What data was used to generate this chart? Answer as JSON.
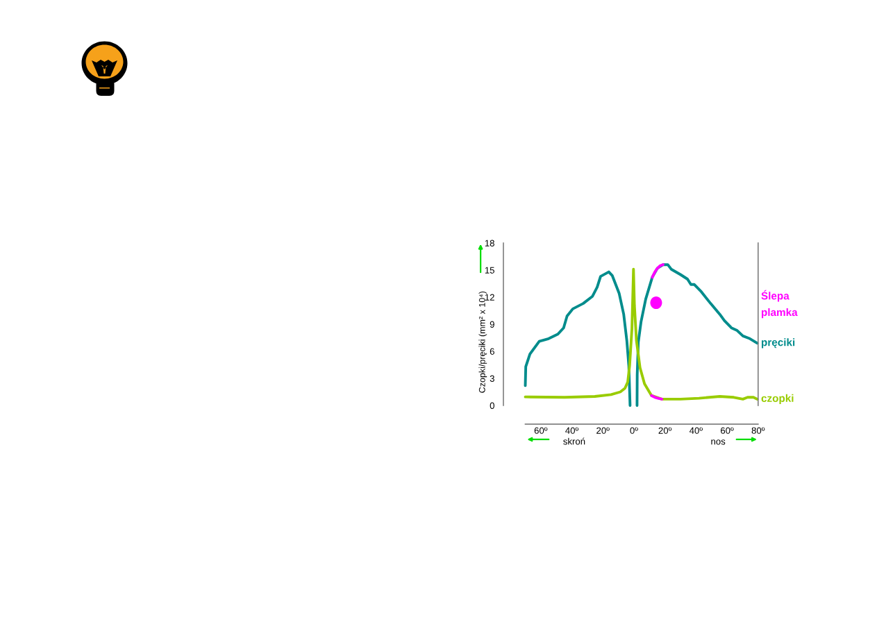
{
  "chart_data": {
    "type": "line",
    "ylabel": "Czopki/pręciki (mm² x 10⁴)",
    "xlim": [
      -70,
      80
    ],
    "xticks": [
      {
        "value": -60,
        "label": "60º"
      },
      {
        "value": -40,
        "label": "40º"
      },
      {
        "value": -20,
        "label": "20º"
      },
      {
        "value": 0,
        "label": "0º"
      },
      {
        "value": 20,
        "label": "20º"
      },
      {
        "value": 40,
        "label": "40º"
      },
      {
        "value": 60,
        "label": "60º"
      },
      {
        "value": 80,
        "label": "80º"
      }
    ],
    "ylim": [
      0,
      18
    ],
    "yticks": [
      0,
      3,
      6,
      9,
      12,
      15,
      18
    ],
    "annotations": [
      "skroń",
      "nos"
    ],
    "series": [
      {
        "name": "pręciki",
        "color": "#008c8c",
        "x": [
          -70,
          -69.7,
          -67,
          -61,
          -55,
          -49,
          -45.3,
          -43.1,
          -39.4,
          -32.7,
          -26.7,
          -23.7,
          -21.5,
          -16.2,
          -14,
          -9.5,
          -6.6,
          -4.6,
          -3.3,
          -2.5,
          0,
          2,
          2.1,
          2.8,
          4.6,
          7.6,
          11.8,
          15.1,
          18.8,
          21.8,
          24,
          30,
          34.5,
          36.7,
          38.9,
          43.4,
          49.4,
          55.3,
          58.3,
          62.8,
          66.5,
          70.2,
          74.7,
          79.5
        ],
        "values": [
          2.2,
          4.3,
          5.7,
          7.1,
          7.4,
          7.9,
          8.6,
          9.9,
          10.7,
          11.3,
          12.1,
          13.1,
          14.3,
          14.8,
          14.4,
          12.4,
          10.1,
          7.2,
          4.4,
          0,
          null,
          0,
          3.4,
          7.0,
          9.3,
          11.8,
          14.2,
          15.2,
          15.6,
          15.6,
          15.1,
          14.5,
          14.0,
          13.4,
          13.4,
          12.6,
          11.3,
          10.1,
          9.4,
          8.6,
          8.3,
          7.7,
          7.4,
          6.9
        ]
      },
      {
        "name": "czopki",
        "color": "#99cc00",
        "x": [
          -70,
          -44.6,
          -25.2,
          -14.8,
          -8.8,
          -5.8,
          -4,
          -2.8,
          -1.3,
          -0.3,
          0.3,
          1.6,
          3.9,
          6.8,
          11.3,
          18,
          30,
          41.9,
          55.3,
          64.3,
          70.2,
          73.2,
          77,
          79.5
        ],
        "values": [
          0.95,
          0.9,
          1.0,
          1.2,
          1.5,
          1.9,
          2.6,
          4.4,
          8.5,
          15.1,
          11.1,
          7.2,
          4.2,
          2.4,
          1.1,
          0.7,
          0.7,
          0.8,
          1.0,
          0.9,
          0.7,
          0.9,
          0.9,
          0.7
        ]
      },
      {
        "name": "Ślepa\nplamka",
        "color": "#ff00ff",
        "x": [
          11.8,
          13.5,
          15.1,
          17,
          18.8
        ],
        "values": [
          14.2,
          14.8,
          15.2,
          15.5,
          15.6
        ]
      },
      {
        "color": "#ff00ff",
        "x": [
          11.3,
          13.5,
          15.5,
          18
        ],
        "values": [
          1.1,
          0.9,
          0.8,
          0.7
        ]
      }
    ]
  }
}
